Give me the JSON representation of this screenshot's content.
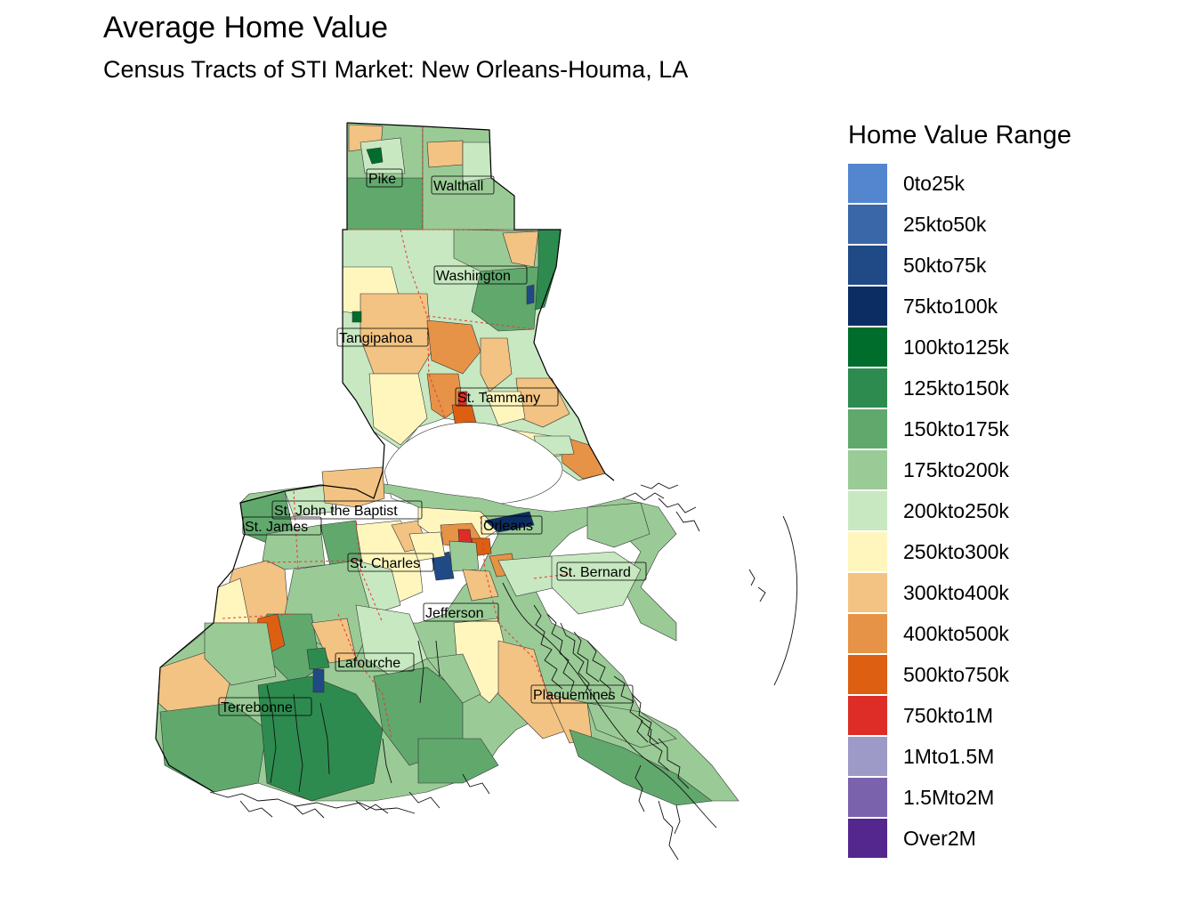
{
  "title": "Average Home Value",
  "subtitle": "Census Tracts of STI Market: New Orleans-Houma, LA",
  "legend": {
    "title": "Home Value Range",
    "items": [
      {
        "label": "0to25k",
        "color": "#5386CE"
      },
      {
        "label": "25kto50k",
        "color": "#3A67A8"
      },
      {
        "label": "50kto75k",
        "color": "#204A86"
      },
      {
        "label": "75kto100k",
        "color": "#0B2D64"
      },
      {
        "label": "100kto125k",
        "color": "#006D2C"
      },
      {
        "label": "125kto150k",
        "color": "#2E8B4F"
      },
      {
        "label": "150kto175k",
        "color": "#61A86D"
      },
      {
        "label": "175kto200k",
        "color": "#9ACB96"
      },
      {
        "label": "200kto250k",
        "color": "#C7E8C1"
      },
      {
        "label": "250kto300k",
        "color": "#FFF6BE"
      },
      {
        "label": "300kto400k",
        "color": "#F2C382"
      },
      {
        "label": "400kto500k",
        "color": "#E69347"
      },
      {
        "label": "500kto750k",
        "color": "#DC5F12"
      },
      {
        "label": "750kto1M",
        "color": "#DE2D26"
      },
      {
        "label": "1Mto1.5M",
        "color": "#9E9AC8"
      },
      {
        "label": "1.5Mto2M",
        "color": "#7B62AD"
      },
      {
        "label": "Over2M",
        "color": "#54278F"
      }
    ]
  },
  "parishes": [
    {
      "name": "Pike"
    },
    {
      "name": "Walthall"
    },
    {
      "name": "Washington"
    },
    {
      "name": "Tangipahoa"
    },
    {
      "name": "St. Tammany"
    },
    {
      "name": "St. John the Baptist"
    },
    {
      "name": "St. James"
    },
    {
      "name": "Orleans"
    },
    {
      "name": "St. Charles"
    },
    {
      "name": "St. Bernard"
    },
    {
      "name": "Jefferson"
    },
    {
      "name": "Lafourche"
    },
    {
      "name": "Plaquemines"
    },
    {
      "name": "Terrebonne"
    }
  ]
}
